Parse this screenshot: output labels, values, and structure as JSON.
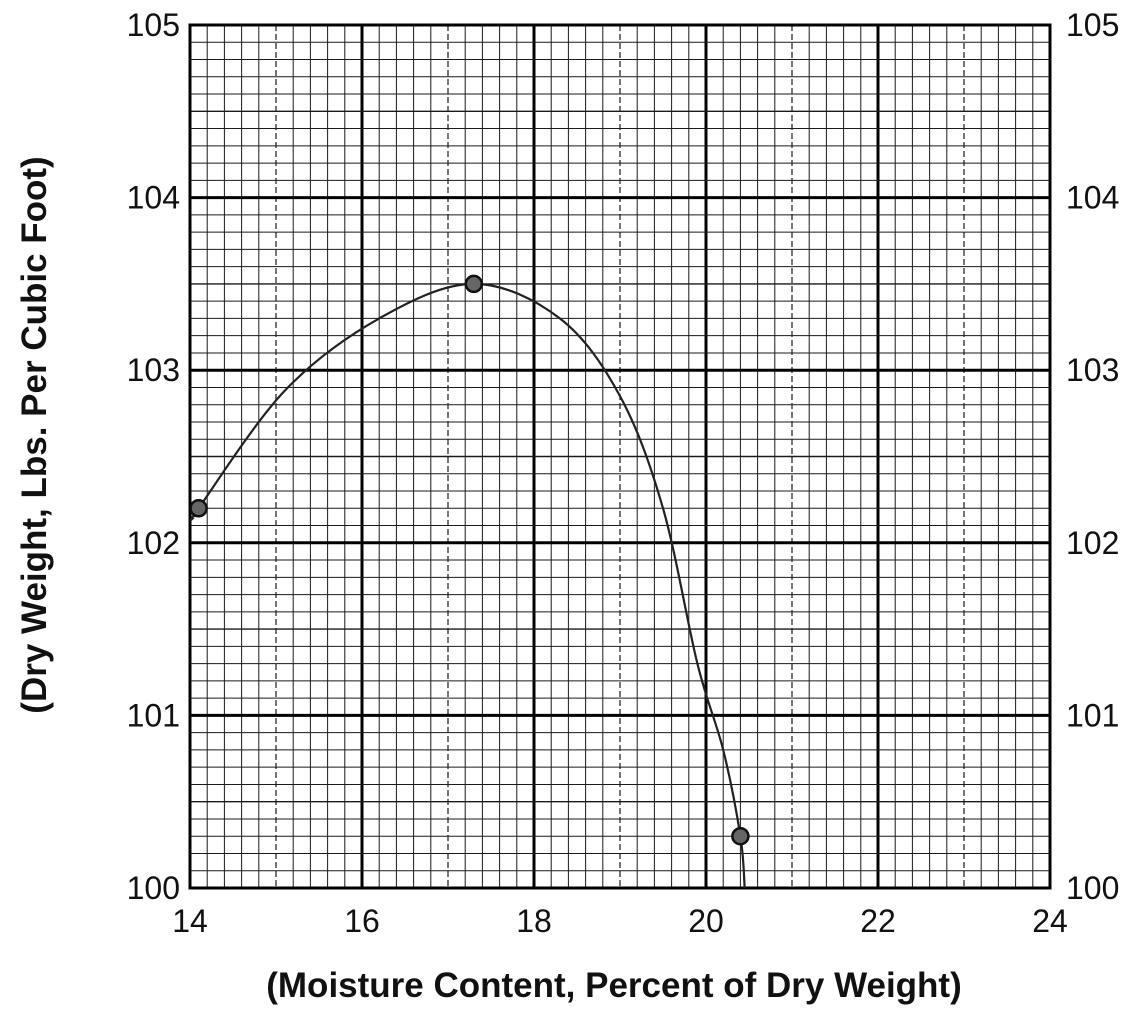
{
  "chart_data": {
    "type": "line",
    "title": "",
    "xlabel": "(Moisture Content, Percent of Dry Weight)",
    "ylabel": "(Dry Weight, Lbs. Per Cubic Foot)",
    "xlim": [
      14,
      24
    ],
    "ylim": [
      100,
      105
    ],
    "x_ticks": [
      "14",
      "16",
      "18",
      "20",
      "22",
      "24"
    ],
    "y_ticks": [
      "100",
      "101",
      "102",
      "103",
      "104",
      "105"
    ],
    "grid": true,
    "secondary_y_axis": true,
    "points": [
      {
        "x": 14.1,
        "y": 102.2
      },
      {
        "x": 17.3,
        "y": 103.5
      },
      {
        "x": 20.4,
        "y": 100.3
      }
    ],
    "curve": [
      {
        "x": 14.05,
        "y": 102.15
      },
      {
        "x": 14.1,
        "y": 102.2
      },
      {
        "x": 15.1,
        "y": 102.88
      },
      {
        "x": 16.2,
        "y": 103.3
      },
      {
        "x": 17.3,
        "y": 103.5
      },
      {
        "x": 18.3,
        "y": 103.3
      },
      {
        "x": 19.0,
        "y": 102.85
      },
      {
        "x": 19.5,
        "y": 102.2
      },
      {
        "x": 19.9,
        "y": 101.3
      },
      {
        "x": 20.2,
        "y": 100.8
      },
      {
        "x": 20.4,
        "y": 100.3
      },
      {
        "x": 20.45,
        "y": 100.0
      }
    ],
    "colors": {
      "grid_minor": "#1a1a1a",
      "grid_major": "#000000",
      "curve": "#222222",
      "marker_fill": "#666666",
      "marker_stroke": "#111111"
    }
  }
}
